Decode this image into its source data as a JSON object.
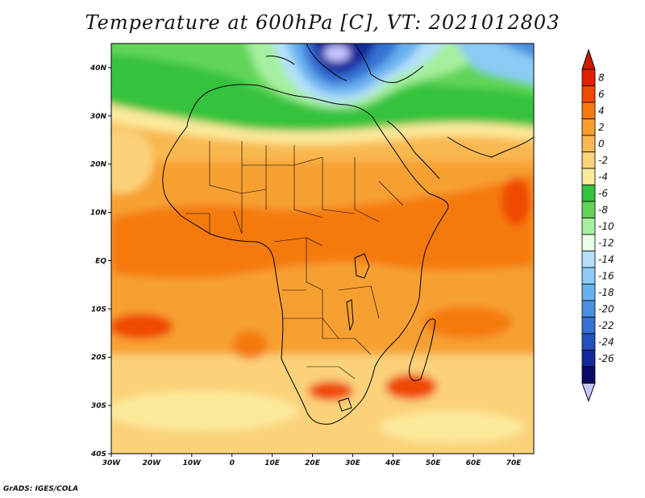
{
  "title": "Temperature at 600hPa [C], VT: 2021012803",
  "credit": "GrADS: IGES/COLA",
  "map": {
    "lon_range": [
      -30,
      75
    ],
    "lat_range": [
      -40,
      45
    ],
    "x_ticks": [
      {
        "lon": -30,
        "label": "30W"
      },
      {
        "lon": -20,
        "label": "20W"
      },
      {
        "lon": -10,
        "label": "10W"
      },
      {
        "lon": 0,
        "label": "0"
      },
      {
        "lon": 10,
        "label": "10E"
      },
      {
        "lon": 20,
        "label": "20E"
      },
      {
        "lon": 30,
        "label": "30E"
      },
      {
        "lon": 40,
        "label": "40E"
      },
      {
        "lon": 50,
        "label": "50E"
      },
      {
        "lon": 60,
        "label": "60E"
      },
      {
        "lon": 70,
        "label": "70E"
      }
    ],
    "y_ticks": [
      {
        "lat": 40,
        "label": "40N"
      },
      {
        "lat": 30,
        "label": "30N"
      },
      {
        "lat": 20,
        "label": "20N"
      },
      {
        "lat": 10,
        "label": "10N"
      },
      {
        "lat": 0,
        "label": "EQ"
      },
      {
        "lat": -10,
        "label": "10S"
      },
      {
        "lat": -20,
        "label": "20S"
      },
      {
        "lat": -30,
        "label": "30S"
      },
      {
        "lat": -40,
        "label": "40S"
      }
    ]
  },
  "colorbar": {
    "levels": [
      "8",
      "6",
      "4",
      "2",
      "0",
      "-2",
      "-4",
      "-6",
      "-8",
      "-10",
      "-12",
      "-14",
      "-16",
      "-18",
      "-20",
      "-22",
      "-24",
      "-26"
    ],
    "colors": [
      "#e02000",
      "#f04a00",
      "#f57a10",
      "#f7a030",
      "#f9b850",
      "#fbd27a",
      "#fbe99a",
      "#35c23c",
      "#62d558",
      "#a6ef9e",
      "#e6ffe6",
      "#b5e0fa",
      "#8ccbf5",
      "#67b1ee",
      "#4b90e0",
      "#3671d4",
      "#2450c0",
      "#122a9a",
      "#0b0b66"
    ],
    "top_arrow_color": "#d01a00",
    "bottom_arrow_color": "#c6c6ff"
  }
}
